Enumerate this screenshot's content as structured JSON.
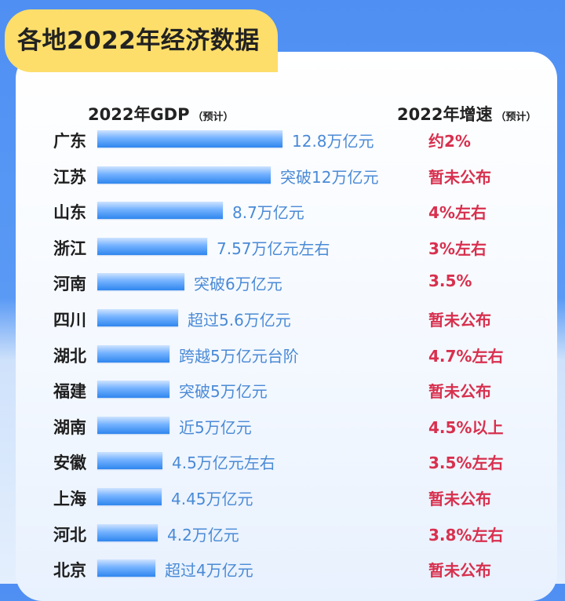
{
  "title": "各地2022年经济数据",
  "header": {
    "gdp_label": "2022年GDP",
    "gdp_note": "（预计）",
    "growth_label": "2022年增速",
    "growth_note": "（预计）"
  },
  "colors": {
    "bar": "#3b8ff0",
    "growth_text": "#d8304e",
    "gdp_text": "#4a8ad6",
    "title_tab": "#fdde6a",
    "background": "#5a9af5"
  },
  "chart_data": {
    "type": "bar",
    "orientation": "horizontal",
    "title": "各地2022年经济数据",
    "categories": [
      "广东",
      "江苏",
      "山东",
      "浙江",
      "河南",
      "四川",
      "湖北",
      "福建",
      "湖南",
      "安徽",
      "上海",
      "河北",
      "北京"
    ],
    "values": [
      12.8,
      12,
      8.7,
      7.57,
      6,
      5.6,
      5,
      5,
      5,
      4.5,
      4.45,
      4.2,
      4
    ],
    "unit": "万亿元",
    "gdp_labels": [
      "12.8万亿元",
      "突破12万亿元",
      "8.7万亿元",
      "7.57万亿元左右",
      "突破6万亿元",
      "超过5.6万亿元",
      "跨越5万亿元台阶",
      "突破5万亿元",
      "近5万亿元",
      "4.5万亿元左右",
      "4.45万亿元",
      "4.2万亿元",
      "超过4万亿元"
    ],
    "growth_labels": [
      "约2%",
      "暂未公布",
      "4%左右",
      "3%左右",
      "3.5%",
      "暂未公布",
      "4.7%左右",
      "暂未公布",
      "4.5%以上",
      "3.5%左右",
      "暂未公布",
      "3.8%左右",
      "暂未公布"
    ]
  }
}
